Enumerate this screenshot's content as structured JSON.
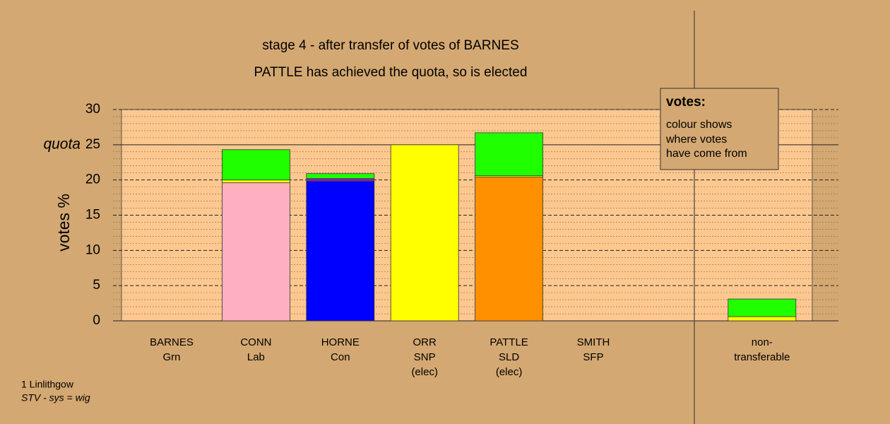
{
  "chart_data": {
    "type": "bar",
    "stacked": true,
    "title": "stage 4 - after transfer of votes of BARNES",
    "subtitle": "PATTLE has achieved the quota, so is elected",
    "y_label": "votes %",
    "categories": [
      [
        "BARNES",
        "Grn"
      ],
      [
        "CONN",
        "Lab"
      ],
      [
        "HORNE",
        "Con"
      ],
      [
        "ORR",
        "SNP",
        "(elec)"
      ],
      [
        "PATTLE",
        "SLD",
        "(elec)"
      ],
      [
        "SMITH",
        "SFP"
      ],
      [
        "non-",
        "transferable"
      ]
    ],
    "series": [
      {
        "color": "#ffb0c0",
        "values": [
          0,
          19.6,
          0,
          0,
          0,
          0,
          0
        ]
      },
      {
        "color": "#0000ff",
        "values": [
          0,
          0,
          19.8,
          0,
          0,
          0,
          0
        ]
      },
      {
        "color": "#ff9000",
        "values": [
          0,
          0,
          0,
          0,
          20.4,
          0,
          0
        ]
      },
      {
        "color": "#ffff00",
        "values": [
          0,
          0.4,
          0,
          25,
          0.2,
          0,
          0.6
        ]
      },
      {
        "color": "#8020c0",
        "values": [
          0,
          0,
          0.4,
          0,
          0,
          0,
          0
        ]
      },
      {
        "color": "#20ff00",
        "values": [
          0,
          4.3,
          0.7,
          0,
          6.1,
          0,
          2.5
        ]
      }
    ],
    "ylim": [
      0,
      30
    ],
    "yticks": [
      0,
      5,
      10,
      15,
      20,
      25,
      30
    ],
    "minor_yticks": [
      1,
      2,
      3,
      4,
      6,
      7,
      8,
      9,
      11,
      12,
      13,
      14,
      16,
      17,
      18,
      19,
      21,
      22,
      23,
      24,
      26,
      27,
      28,
      29
    ],
    "quota": {
      "value": 25,
      "label": "quota"
    },
    "legend": {
      "title": "votes:",
      "lines": [
        "colour shows",
        "where votes",
        "have come from"
      ]
    },
    "footnote": [
      "1 Linlithgow",
      "STV - sys = wig"
    ]
  }
}
